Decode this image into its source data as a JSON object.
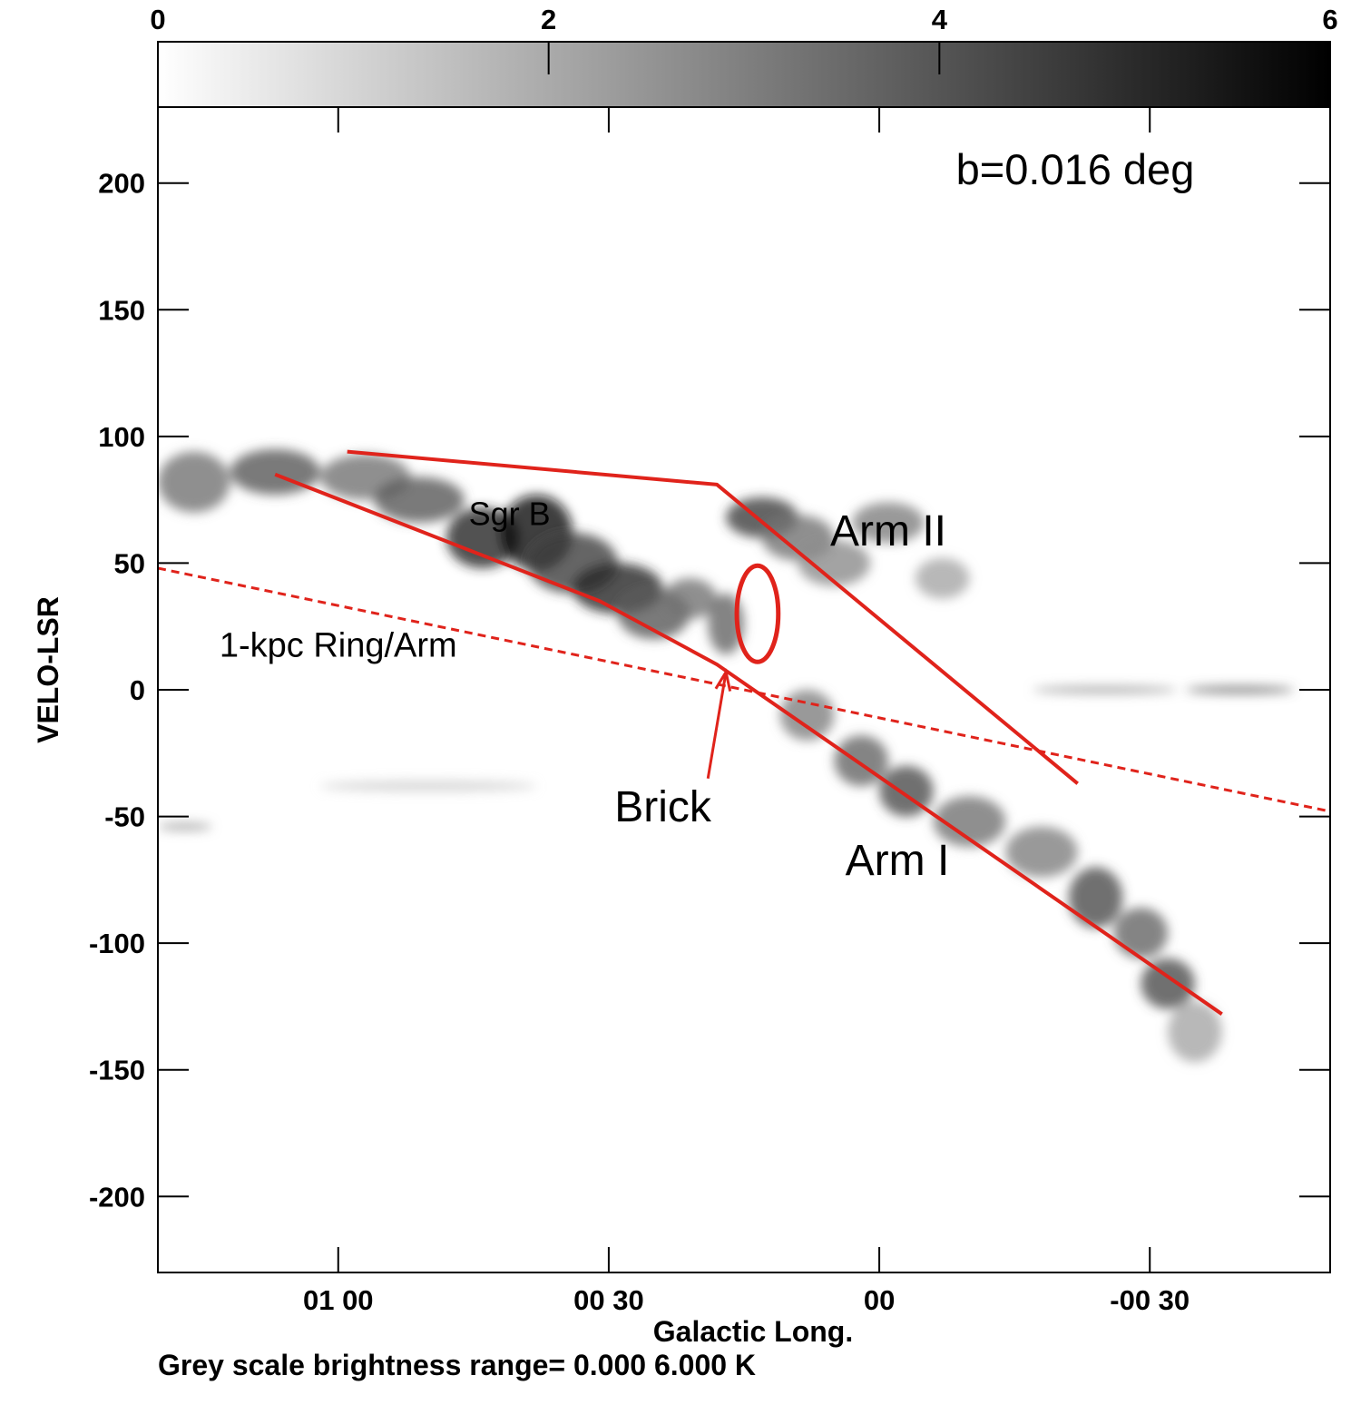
{
  "chart_data": {
    "type": "heatmap",
    "title": "",
    "panel_label": "b=0.016 deg",
    "xlabel": "Galactic Long.",
    "ylabel": "VELO-LSR",
    "footer": "Grey scale brightness range= 0.000 6.000 K",
    "x_range_arcmin": [
      80,
      -50
    ],
    "x_ticks": [
      {
        "value_arcmin": 60,
        "label": "01 00"
      },
      {
        "value_arcmin": 30,
        "label": "00 30"
      },
      {
        "value_arcmin": 0,
        "label": "00"
      },
      {
        "value_arcmin": -30,
        "label": "-00 30"
      }
    ],
    "y_range": [
      -230,
      230
    ],
    "y_ticks": [
      200,
      150,
      100,
      50,
      0,
      -50,
      -100,
      -150,
      -200
    ],
    "y_tick_labels": [
      "200",
      "150",
      "100",
      "50",
      "0",
      "-50",
      "-100",
      "-150",
      "-200"
    ],
    "colorbar": {
      "min": 0,
      "max": 6,
      "unit": "K",
      "ticks": [
        0,
        2,
        4,
        6
      ],
      "tick_labels": [
        "0",
        "2",
        "4",
        "6"
      ],
      "colors": [
        "#ffffff",
        "#000000"
      ]
    },
    "emission_features": [
      {
        "l_arcmin": 76,
        "v": 82,
        "strength": 0.55,
        "dl": 4,
        "dv": 12
      },
      {
        "l_arcmin": 67,
        "v": 86,
        "strength": 0.65,
        "dl": 5,
        "dv": 9
      },
      {
        "l_arcmin": 57,
        "v": 84,
        "strength": 0.55,
        "dl": 5,
        "dv": 9
      },
      {
        "l_arcmin": 51,
        "v": 75,
        "strength": 0.65,
        "dl": 5,
        "dv": 9
      },
      {
        "l_arcmin": 44,
        "v": 60,
        "strength": 0.85,
        "dl": 4,
        "dv": 12
      },
      {
        "l_arcmin": 38,
        "v": 62,
        "strength": 0.95,
        "dl": 4,
        "dv": 15
      },
      {
        "l_arcmin": 34,
        "v": 50,
        "strength": 0.75,
        "dl": 5,
        "dv": 12
      },
      {
        "l_arcmin": 29,
        "v": 40,
        "strength": 0.85,
        "dl": 5,
        "dv": 10
      },
      {
        "l_arcmin": 25,
        "v": 30,
        "strength": 0.65,
        "dl": 4,
        "dv": 10
      },
      {
        "l_arcmin": 21,
        "v": 36,
        "strength": 0.55,
        "dl": 3,
        "dv": 8
      },
      {
        "l_arcmin": 17,
        "v": 26,
        "strength": 0.6,
        "dl": 2,
        "dv": 12
      },
      {
        "l_arcmin": 13,
        "v": 68,
        "strength": 0.75,
        "dl": 4,
        "dv": 8
      },
      {
        "l_arcmin": 9,
        "v": 60,
        "strength": 0.55,
        "dl": 4,
        "dv": 9
      },
      {
        "l_arcmin": 5,
        "v": 50,
        "strength": 0.45,
        "dl": 4,
        "dv": 9
      },
      {
        "l_arcmin": -1,
        "v": 66,
        "strength": 0.5,
        "dl": 4,
        "dv": 8
      },
      {
        "l_arcmin": -7,
        "v": 44,
        "strength": 0.35,
        "dl": 3,
        "dv": 8
      },
      {
        "l_arcmin": 8,
        "v": -10,
        "strength": 0.5,
        "dl": 3,
        "dv": 10
      },
      {
        "l_arcmin": 2,
        "v": -28,
        "strength": 0.6,
        "dl": 3,
        "dv": 10
      },
      {
        "l_arcmin": -3,
        "v": -40,
        "strength": 0.7,
        "dl": 3,
        "dv": 10
      },
      {
        "l_arcmin": -10,
        "v": -52,
        "strength": 0.55,
        "dl": 4,
        "dv": 10
      },
      {
        "l_arcmin": -18,
        "v": -64,
        "strength": 0.5,
        "dl": 4,
        "dv": 10
      },
      {
        "l_arcmin": -24,
        "v": -82,
        "strength": 0.7,
        "dl": 3,
        "dv": 12
      },
      {
        "l_arcmin": -29,
        "v": -96,
        "strength": 0.6,
        "dl": 3,
        "dv": 10
      },
      {
        "l_arcmin": -32,
        "v": -116,
        "strength": 0.7,
        "dl": 3,
        "dv": 10
      },
      {
        "l_arcmin": -35,
        "v": -135,
        "strength": 0.35,
        "dl": 3,
        "dv": 12
      },
      {
        "l_arcmin": -40,
        "v": 0,
        "strength": 0.6,
        "dl": 6,
        "dv": 1.5
      },
      {
        "l_arcmin": -25,
        "v": 0,
        "strength": 0.4,
        "dl": 8,
        "dv": 1.5
      },
      {
        "l_arcmin": 77,
        "v": -54,
        "strength": 0.4,
        "dl": 3,
        "dv": 1.5
      },
      {
        "l_arcmin": 50,
        "v": -38,
        "strength": 0.2,
        "dl": 12,
        "dv": 2
      }
    ],
    "series": [
      {
        "name": "Arm I",
        "style": "solid",
        "color": "#e0231b",
        "x_arcmin": [
          67,
          31,
          18,
          -38
        ],
        "y": [
          85,
          35,
          10,
          -128
        ]
      },
      {
        "name": "Arm II",
        "style": "solid",
        "color": "#e0231b",
        "x_arcmin": [
          59,
          18,
          -22
        ],
        "y": [
          94,
          81,
          -37
        ]
      },
      {
        "name": "1-kpc Ring/Arm",
        "style": "dashed",
        "color": "#e0231b",
        "x_arcmin": [
          80,
          -50
        ],
        "y": [
          48,
          -48
        ]
      }
    ],
    "annotations": [
      {
        "text": "Sgr B",
        "l_arcmin": 41,
        "v": 65
      },
      {
        "text": "Arm II",
        "l_arcmin": -1,
        "v": 57
      },
      {
        "text": "1-kpc Ring/Arm",
        "l_arcmin": 60,
        "v": 13
      },
      {
        "text": "Brick",
        "l_arcmin": 24,
        "v": -52
      },
      {
        "text": "Arm I",
        "l_arcmin": -2,
        "v": -73
      }
    ],
    "brick": {
      "ellipse": {
        "l_arcmin": 13.5,
        "v": 30,
        "rl": 2.3,
        "rv": 19
      },
      "arrow": {
        "from_l_arcmin": 19,
        "from_v": -35,
        "to_l_arcmin": 17,
        "to_v": 7
      }
    }
  }
}
